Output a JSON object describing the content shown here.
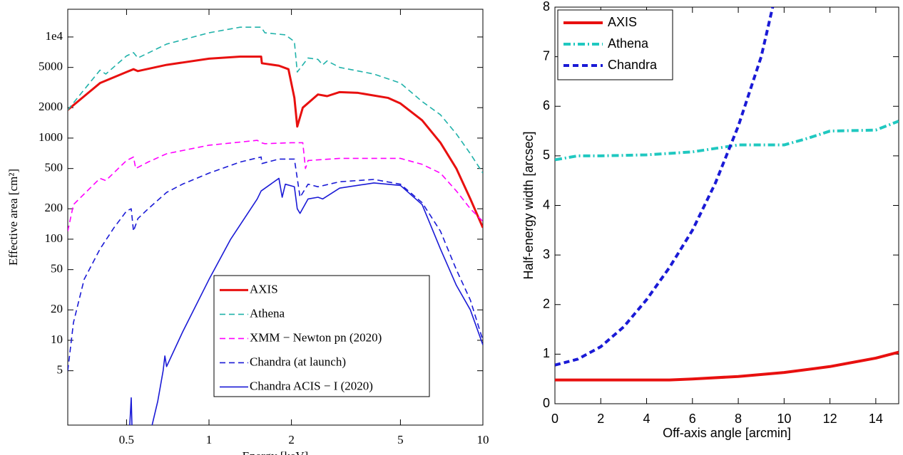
{
  "chart_data": [
    {
      "type": "line",
      "x_label": "Energy [keV]",
      "y_label": "Effective area [cm²]",
      "xlog": true,
      "ylog": true,
      "xlim": [
        0.305,
        10
      ],
      "ylim": [
        1.45,
        18800
      ],
      "xticks": [
        0.5,
        1,
        2,
        5,
        10
      ],
      "yticks": [
        5,
        10,
        20,
        50,
        100,
        200,
        500,
        1000,
        2000,
        5000,
        {
          "value": 10000,
          "label": "1e4"
        }
      ],
      "legend": "lower right",
      "font": "serif",
      "series": [
        {
          "name": "AXIS",
          "color": "#e8100f",
          "linestyle": "solid",
          "linewidth": 3,
          "x": [
            0.305,
            0.4,
            0.5,
            0.53,
            0.55,
            0.7,
            1.0,
            1.3,
            1.55,
            1.56,
            1.8,
            1.95,
            2.05,
            2.1,
            2.2,
            2.5,
            2.7,
            3,
            3.5,
            4.5,
            5,
            6,
            7,
            8,
            9,
            10
          ],
          "values": [
            1900,
            3500,
            4500,
            4800,
            4600,
            5300,
            6100,
            6400,
            6400,
            5500,
            5200,
            4800,
            2500,
            1300,
            2000,
            2700,
            2600,
            2850,
            2800,
            2500,
            2200,
            1500,
            900,
            500,
            250,
            130
          ]
        },
        {
          "name": "Athena",
          "color": "#20b2aa",
          "linestyle": "dashed",
          "linewidth": 1.6,
          "x": [
            0.305,
            0.4,
            0.42,
            0.5,
            0.53,
            0.55,
            0.7,
            1,
            1.3,
            1.55,
            1.6,
            1.9,
            2.05,
            2.1,
            2.3,
            2.5,
            2.6,
            2.7,
            3,
            4,
            5,
            6,
            7,
            8,
            9,
            10
          ],
          "values": [
            1900,
            4700,
            4300,
            6500,
            7000,
            6200,
            8500,
            11000,
            12500,
            12500,
            11000,
            10500,
            9000,
            4500,
            6200,
            6000,
            5300,
            5800,
            5000,
            4300,
            3500,
            2300,
            1700,
            1100,
            700,
            450
          ]
        },
        {
          "name": "XMM − Newton pn (2020)",
          "color": "#ff00ff",
          "linestyle": "dashed",
          "linewidth": 1.6,
          "x": [
            0.305,
            0.32,
            0.4,
            0.42,
            0.5,
            0.53,
            0.54,
            0.6,
            0.7,
            1,
            1.5,
            1.55,
            1.6,
            2.0,
            2.2,
            2.25,
            2.3,
            3,
            5,
            6,
            7,
            8,
            9,
            10
          ],
          "values": [
            120,
            220,
            400,
            380,
            600,
            650,
            500,
            580,
            700,
            850,
            950,
            900,
            880,
            900,
            900,
            500,
            600,
            630,
            630,
            550,
            450,
            300,
            200,
            150
          ]
        },
        {
          "name": "Chandra (at launch)",
          "color": "#1a1ad6",
          "linestyle": "dashed",
          "linewidth": 1.6,
          "x": [
            0.305,
            0.32,
            0.35,
            0.4,
            0.45,
            0.5,
            0.52,
            0.53,
            0.55,
            0.6,
            0.7,
            0.8,
            1,
            1.3,
            1.55,
            1.56,
            1.8,
            2.05,
            2.1,
            2.15,
            2.3,
            2.5,
            3,
            4,
            5,
            6,
            7,
            8,
            9,
            10
          ],
          "values": [
            5,
            15,
            40,
            80,
            130,
            190,
            200,
            120,
            160,
            200,
            290,
            350,
            450,
            580,
            650,
            560,
            620,
            620,
            400,
            260,
            350,
            330,
            370,
            390,
            350,
            230,
            120,
            50,
            25,
            10
          ]
        },
        {
          "name": "Chandra ACIS − I (2020)",
          "color": "#1a1ad6",
          "linestyle": "solid",
          "linewidth": 1.6,
          "x": [
            0.51,
            0.52,
            0.525,
            0.55,
            0.6,
            0.65,
            0.68,
            0.69,
            0.7,
            0.8,
            1,
            1.2,
            1.5,
            1.55,
            1.8,
            1.85,
            1.9,
            2.05,
            2.1,
            2.15,
            2.3,
            2.5,
            2.6,
            3,
            4,
            5,
            6,
            7,
            8,
            9,
            10
          ],
          "values": [
            1.0,
            2.7,
            1.0,
            null,
            1.0,
            2.5,
            5,
            7,
            5.5,
            12,
            40,
            100,
            250,
            300,
            400,
            260,
            350,
            330,
            200,
            180,
            250,
            260,
            250,
            320,
            360,
            340,
            220,
            80,
            35,
            20,
            9
          ]
        }
      ]
    },
    {
      "type": "line",
      "x_label": "Off-axis angle [arcmin]",
      "y_label": "Half-energy width [arcsec]",
      "xlog": false,
      "ylog": false,
      "xlim": [
        0,
        15
      ],
      "ylim": [
        0,
        8
      ],
      "xticks": [
        0,
        2,
        4,
        6,
        8,
        10,
        12,
        14
      ],
      "yticks": [
        0,
        1,
        2,
        3,
        4,
        5,
        6,
        7,
        8
      ],
      "legend": "upper left",
      "font": "sans-serif",
      "series": [
        {
          "name": "AXIS",
          "color": "#e8100f",
          "linestyle": "solid",
          "linewidth": 4,
          "x": [
            0,
            5,
            6,
            8,
            10,
            12,
            14,
            15
          ],
          "values": [
            0.48,
            0.48,
            0.5,
            0.55,
            0.63,
            0.75,
            0.92,
            1.04
          ]
        },
        {
          "name": "Athena",
          "color": "#20c8c0",
          "linestyle": "dashdot",
          "linewidth": 4,
          "x": [
            0,
            1,
            2,
            4,
            6,
            8,
            10,
            11,
            12,
            14,
            15
          ],
          "values": [
            4.92,
            5.0,
            5.0,
            5.02,
            5.08,
            5.22,
            5.22,
            5.35,
            5.5,
            5.52,
            5.7
          ]
        },
        {
          "name": "Chandra",
          "color": "#1a1ad6",
          "linestyle": "dashed",
          "linewidth": 4,
          "x": [
            0,
            1,
            2,
            3,
            4,
            5,
            6,
            7,
            8,
            9,
            9.5
          ],
          "values": [
            0.78,
            0.9,
            1.15,
            1.55,
            2.1,
            2.75,
            3.5,
            4.45,
            5.6,
            7.0,
            8.0
          ]
        }
      ]
    }
  ]
}
